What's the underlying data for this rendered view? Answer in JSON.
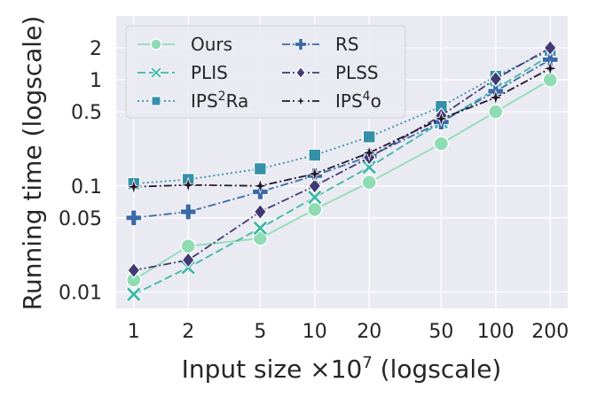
{
  "chart_data": {
    "type": "line",
    "title": "",
    "xlabel": "Input size ×10",
    "xlabel_exp": "7",
    "xlabel_suffix": " (logscale)",
    "ylabel": "Running time (logscale)",
    "xscale": "log",
    "yscale": "log",
    "xlim": [
      0.8,
      250
    ],
    "ylim": [
      0.007,
      4
    ],
    "grid": true,
    "legend_position": "top-left",
    "x": [
      1,
      2,
      5,
      10,
      20,
      50,
      100,
      200
    ],
    "xticks": [
      {
        "value": 1,
        "label": "1"
      },
      {
        "value": 2,
        "label": "2"
      },
      {
        "value": 5,
        "label": "5"
      },
      {
        "value": 10,
        "label": "10"
      },
      {
        "value": 20,
        "label": "20"
      },
      {
        "value": 50,
        "label": "50"
      },
      {
        "value": 100,
        "label": "100"
      },
      {
        "value": 200,
        "label": "200"
      }
    ],
    "yticks": [
      {
        "value": 0.01,
        "label": "0.01"
      },
      {
        "value": 0.05,
        "label": "0.05"
      },
      {
        "value": 0.1,
        "label": "0.1"
      },
      {
        "value": 0.5,
        "label": "0.5"
      },
      {
        "value": 1,
        "label": "1"
      },
      {
        "value": 2,
        "label": "2"
      }
    ],
    "series": [
      {
        "name": "Ours",
        "label_main": "Ours",
        "label_sup": "",
        "label_tail": "",
        "color": "#8fdcb4",
        "dash": "",
        "marker": "circle",
        "values": [
          0.013,
          0.027,
          0.032,
          0.06,
          0.108,
          0.25,
          0.5,
          1.0
        ]
      },
      {
        "name": "PLIS",
        "label_main": "PLIS",
        "label_sup": "",
        "label_tail": "",
        "color": "#3fb7a7",
        "dash": "9,4",
        "marker": "x",
        "values": [
          0.0095,
          0.017,
          0.04,
          0.078,
          0.15,
          0.4,
          0.82,
          1.7
        ]
      },
      {
        "name": "IPS2Ra",
        "label_main": "IPS",
        "label_sup": "2",
        "label_tail": "Ra",
        "color": "#3591a9",
        "dash": "2,3",
        "marker": "square",
        "values": [
          0.105,
          0.115,
          0.145,
          0.195,
          0.29,
          0.56,
          1.08,
          1.9
        ]
      },
      {
        "name": "RS",
        "label_main": "RS",
        "label_sup": "",
        "label_tail": "",
        "color": "#3b6aa8",
        "dash": "9,3,2,3",
        "marker": "plus",
        "values": [
          0.05,
          0.057,
          0.088,
          0.125,
          0.19,
          0.4,
          0.78,
          1.55
        ]
      },
      {
        "name": "PLSS",
        "label_main": "PLSS",
        "label_sup": "",
        "label_tail": "",
        "color": "#413a74",
        "dash": "9,3,2,3",
        "marker": "diamond",
        "values": [
          0.016,
          0.02,
          0.057,
          0.1,
          0.185,
          0.46,
          1.02,
          2.0
        ]
      },
      {
        "name": "IPS4o",
        "label_main": "IPS",
        "label_sup": "4",
        "label_tail": "o",
        "color": "#23162d",
        "dash": "9,3,2,3",
        "marker": "star",
        "values": [
          0.098,
          0.102,
          0.1,
          0.13,
          0.205,
          0.43,
          0.68,
          1.28
        ]
      }
    ]
  }
}
